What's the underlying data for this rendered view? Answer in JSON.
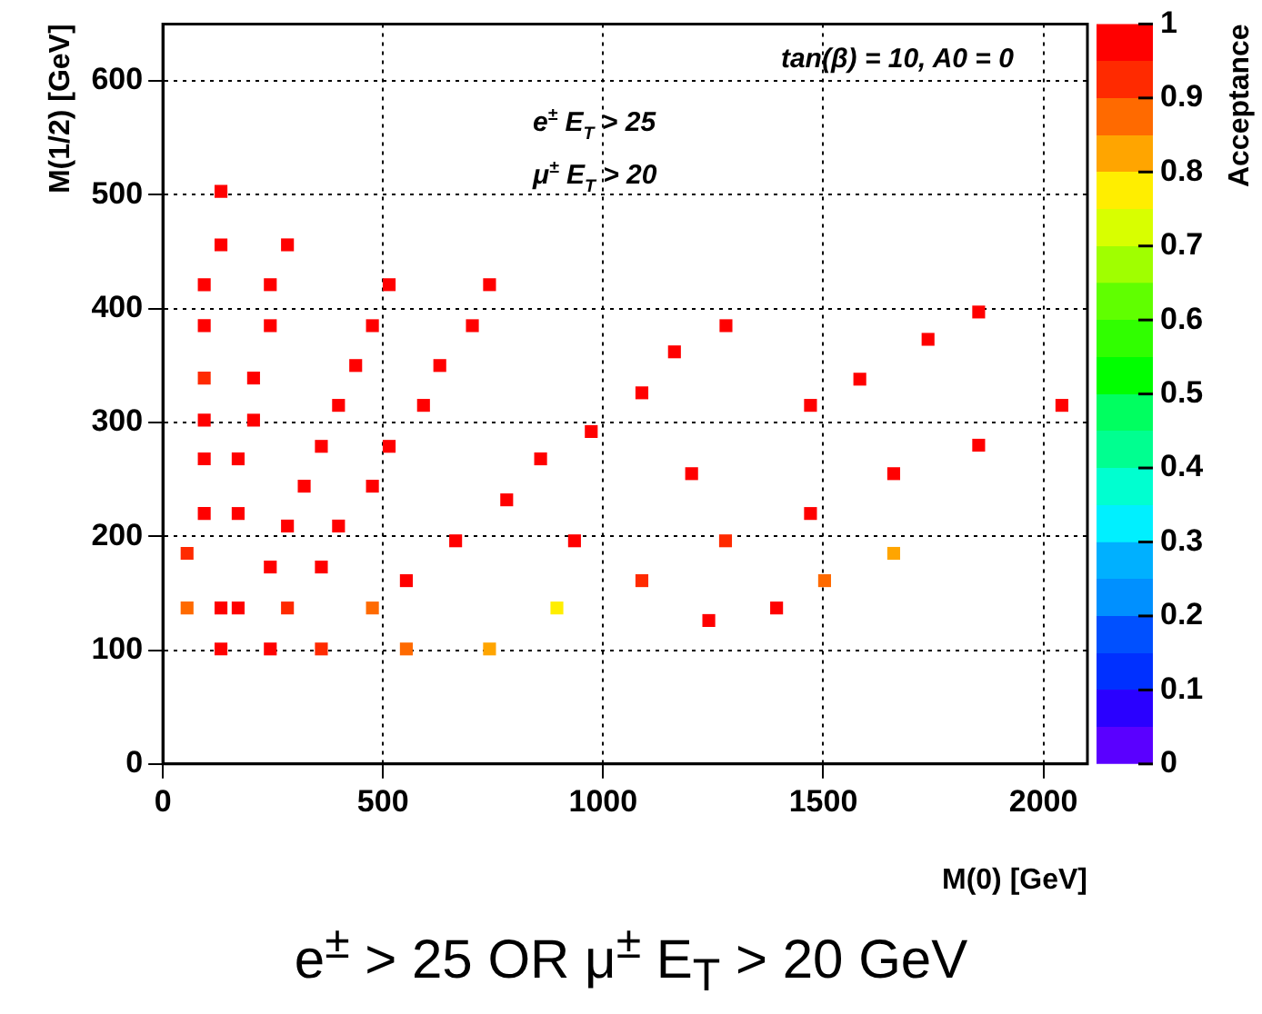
{
  "chart_data": {
    "type": "scatter",
    "title": "e$^{±}$ > 25 OR μ$^{±}$ E$_{T}$ > 20 GeV",
    "xlabel": "M(0) [GeV]",
    "ylabel": "M(1/2) [GeV]",
    "clabel": "Acceptance",
    "annotations": [
      "tan(β) = 10, A0 = 0",
      "e$^{±}$ E$_{T}$ > 25",
      "μ$^{±}$ E$_{T}$ > 20"
    ],
    "x": [
      132,
      132,
      283,
      94,
      244,
      514,
      742,
      94,
      244,
      476,
      703,
      438,
      629,
      94,
      206,
      399,
      592,
      94,
      206,
      973,
      1279,
      1162,
      1088,
      1471,
      1583,
      1738,
      1853,
      2042,
      1853,
      94,
      171,
      360,
      514,
      321,
      476,
      94,
      171,
      283,
      399,
      55,
      244,
      360,
      553,
      665,
      858,
      781,
      935,
      55,
      132,
      171,
      283,
      476,
      895,
      132,
      244,
      360,
      553,
      742,
      1201,
      1660,
      1471,
      1278,
      1660,
      1088,
      1503,
      1240,
      1394
    ],
    "values": [
      503,
      456,
      456,
      421,
      421,
      421,
      421,
      385,
      385,
      385,
      385,
      350,
      350,
      339,
      339,
      315,
      315,
      302,
      302,
      292,
      385,
      362,
      326,
      315,
      338,
      373,
      397,
      315,
      280,
      268,
      268,
      279,
      279,
      244,
      244,
      220,
      220,
      209,
      209,
      185,
      173,
      173,
      161,
      196,
      268,
      232,
      196,
      137,
      137,
      137,
      137,
      137,
      137,
      101,
      101,
      101,
      101,
      101,
      255,
      255,
      220,
      196,
      185,
      161,
      161,
      126,
      137
    ],
    "cvalues": [
      0.97,
      0.97,
      0.97,
      0.97,
      0.97,
      0.97,
      0.97,
      0.97,
      0.97,
      0.97,
      0.97,
      0.97,
      0.97,
      0.92,
      0.97,
      0.97,
      0.97,
      0.97,
      0.97,
      0.97,
      0.97,
      0.97,
      0.97,
      0.97,
      0.97,
      0.97,
      0.97,
      0.97,
      0.97,
      0.97,
      0.97,
      0.97,
      0.97,
      0.97,
      0.97,
      0.97,
      0.97,
      0.97,
      0.97,
      0.92,
      0.97,
      0.97,
      0.97,
      0.97,
      0.97,
      0.97,
      0.97,
      0.87,
      0.97,
      0.97,
      0.92,
      0.87,
      0.77,
      0.97,
      0.97,
      0.92,
      0.87,
      0.82,
      0.97,
      0.97,
      0.97,
      0.92,
      0.82,
      0.92,
      0.87,
      0.97,
      0.97
    ],
    "xlim": [
      0,
      2100
    ],
    "xticks": [
      0,
      500,
      1000,
      1500,
      2000
    ],
    "ylim": [
      0,
      650
    ],
    "yticks": [
      0,
      100,
      200,
      300,
      400,
      500,
      600
    ],
    "clim": [
      0,
      1
    ],
    "cticks": [
      0,
      0.1,
      0.2,
      0.3,
      0.4,
      0.5,
      0.6,
      0.7,
      0.8,
      0.9,
      1
    ],
    "grid": true,
    "marker": "square"
  }
}
